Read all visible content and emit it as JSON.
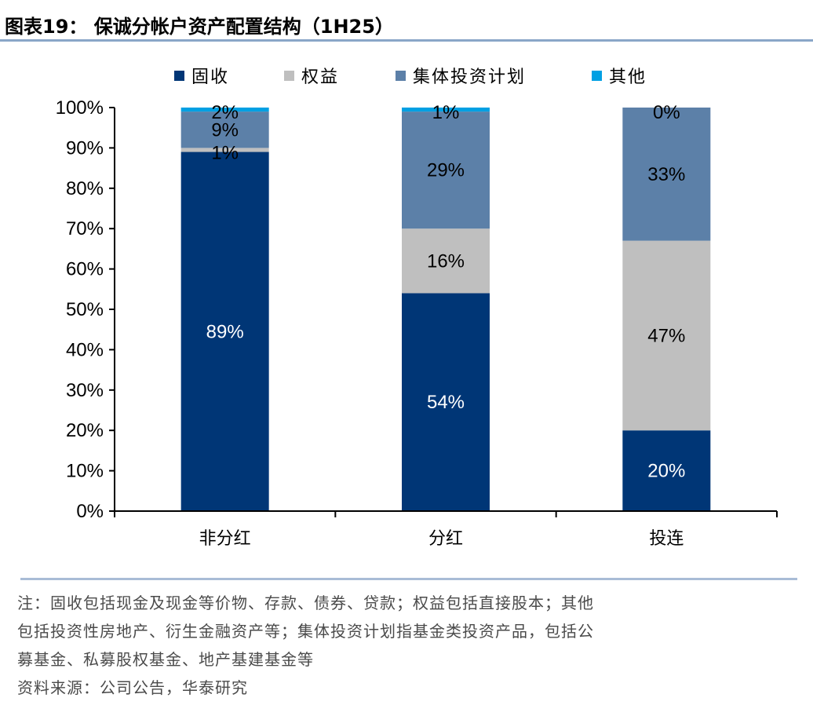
{
  "title": "图表19： 保诚分帐户资产配置结构（1H25）",
  "chart_data": {
    "type": "bar",
    "stacked": true,
    "categories": [
      "非分红",
      "分红",
      "投连"
    ],
    "series": [
      {
        "name": "固收",
        "values": [
          89,
          54,
          20
        ],
        "labels": [
          "89%",
          "54%",
          "20%"
        ],
        "color": "#003676",
        "label_color": "#ffffff"
      },
      {
        "name": "权益",
        "values": [
          1,
          16,
          47
        ],
        "labels": [
          "1%",
          "16%",
          "47%"
        ],
        "color": "#bfbfbf",
        "label_color": "#000000"
      },
      {
        "name": "集体投资计划",
        "values": [
          9,
          29,
          33
        ],
        "labels": [
          "9%",
          "29%",
          "33%"
        ],
        "color": "#5c80a8",
        "label_color": "#000000"
      },
      {
        "name": "其他",
        "values": [
          2,
          1,
          0
        ],
        "labels": [
          "2%",
          "1%",
          "0%"
        ],
        "color": "#00a0e3",
        "label_color": "#000000"
      }
    ],
    "ylim": [
      0,
      100
    ],
    "yticks": [
      "0%",
      "10%",
      "20%",
      "30%",
      "40%",
      "50%",
      "60%",
      "70%",
      "80%",
      "90%",
      "100%"
    ],
    "legend_position": "top",
    "xlabel": "",
    "ylabel": ""
  },
  "footnote": {
    "line1": "注：固收包括现金及现金等价物、存款、债券、贷款；权益包括直接股本；其他",
    "line2": "包括投资性房地产、衍生金融资产等；集体投资计划指基金类投资产品，包括公",
    "line3": "募基金、私募股权基金、地产基建基金等",
    "source": "资料来源：公司公告，华泰研究"
  }
}
